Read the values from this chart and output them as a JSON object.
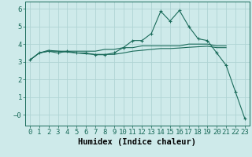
{
  "x": [
    0,
    1,
    2,
    3,
    4,
    5,
    6,
    7,
    8,
    9,
    10,
    11,
    12,
    13,
    14,
    15,
    16,
    17,
    18,
    19,
    20,
    21,
    22,
    23
  ],
  "line1": [
    3.1,
    3.5,
    3.6,
    3.5,
    3.6,
    3.5,
    3.5,
    3.4,
    3.4,
    3.5,
    3.8,
    4.2,
    4.2,
    4.6,
    5.85,
    5.3,
    5.9,
    5.0,
    4.3,
    4.2,
    3.5,
    2.8,
    1.3,
    -0.2
  ],
  "line2": [
    3.1,
    3.5,
    3.6,
    3.6,
    3.6,
    3.6,
    3.6,
    3.6,
    3.7,
    3.7,
    3.8,
    3.8,
    3.9,
    3.9,
    3.9,
    3.9,
    3.9,
    4.0,
    4.0,
    4.0,
    3.9,
    3.9,
    null,
    null
  ],
  "line3": [
    3.1,
    3.5,
    3.65,
    3.6,
    3.55,
    3.5,
    3.45,
    3.42,
    3.42,
    3.42,
    3.5,
    3.6,
    3.65,
    3.7,
    3.75,
    3.75,
    3.78,
    3.82,
    3.85,
    3.88,
    3.8,
    3.8,
    null,
    null
  ],
  "line_color": "#1a6b5a",
  "bg_color": "#ceeaea",
  "grid_color": "#afd4d4",
  "xlabel": "Humidex (Indice chaleur)",
  "xlabel_fontsize": 7.5,
  "tick_fontsize": 6.5,
  "ylim": [
    -0.6,
    6.4
  ],
  "xlim": [
    -0.5,
    23.5
  ]
}
